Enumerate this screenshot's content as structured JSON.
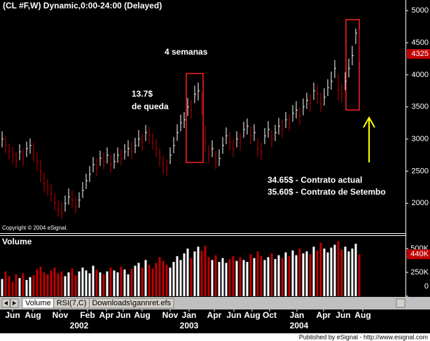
{
  "chart_data": {
    "type": "ohlc",
    "title": "(CL #F,W) Dynamic,0:00-24:00 (Delayed)",
    "up_color": "#ffffff",
    "down_color": "#c00000",
    "close": [
      3000,
      2900,
      2800,
      2750,
      2650,
      2800,
      2700,
      2850,
      2900,
      2800,
      2650,
      2500,
      2300,
      2250,
      2150,
      2000,
      1900,
      1850,
      2000,
      2100,
      2050,
      1950,
      2050,
      2200,
      2350,
      2450,
      2600,
      2550,
      2700,
      2650,
      2750,
      2600,
      2650,
      2750,
      2700,
      2800,
      2850,
      2800,
      2900,
      3000,
      2950,
      3100,
      3050,
      2950,
      2850,
      2700,
      2600,
      2550,
      2750,
      2900,
      3100,
      3250,
      3300,
      3500,
      3450,
      3700,
      3750,
      3550,
      2950,
      2750,
      2850,
      2650,
      2700,
      2900,
      3050,
      2950,
      2850,
      3000,
      2950,
      3150,
      3200,
      3050,
      3100,
      2850,
      2800,
      3050,
      3150,
      3000,
      3100,
      3200,
      3150,
      3300,
      3250,
      3400,
      3450,
      3350,
      3500,
      3600,
      3550,
      3750,
      3700,
      3550,
      3650,
      3800,
      3900,
      4100,
      3750,
      3700,
      3900,
      4100,
      4300,
      4650,
      4325
    ],
    "high": [
      3120,
      3050,
      2930,
      2880,
      2800,
      2920,
      2850,
      2960,
      3010,
      2950,
      2800,
      2680,
      2480,
      2380,
      2300,
      2150,
      2050,
      2020,
      2120,
      2230,
      2200,
      2100,
      2170,
      2330,
      2460,
      2580,
      2720,
      2700,
      2820,
      2790,
      2870,
      2760,
      2780,
      2870,
      2840,
      2920,
      2980,
      2950,
      3020,
      3140,
      3080,
      3220,
      3190,
      3090,
      3000,
      2860,
      2740,
      2680,
      2870,
      3030,
      3230,
      3380,
      3420,
      3640,
      3600,
      3830,
      3880,
      3720,
      3200,
      2900,
      2980,
      2820,
      2840,
      3030,
      3180,
      3100,
      2990,
      3120,
      3090,
      3270,
      3320,
      3200,
      3230,
      3010,
      2950,
      3170,
      3280,
      3140,
      3220,
      3330,
      3300,
      3420,
      3390,
      3530,
      3590,
      3500,
      3630,
      3720,
      3700,
      3880,
      3850,
      3720,
      3790,
      3930,
      4050,
      4230,
      4020,
      3860,
      4040,
      4250,
      4450,
      4720,
      4700
    ],
    "low": [
      2870,
      2780,
      2680,
      2620,
      2540,
      2670,
      2580,
      2720,
      2770,
      2650,
      2500,
      2330,
      2180,
      2120,
      2020,
      1880,
      1790,
      1760,
      1870,
      1980,
      1930,
      1840,
      1930,
      2080,
      2220,
      2330,
      2480,
      2420,
      2580,
      2530,
      2620,
      2480,
      2540,
      2630,
      2590,
      2680,
      2730,
      2680,
      2780,
      2880,
      2820,
      2970,
      2930,
      2830,
      2720,
      2570,
      2460,
      2420,
      2610,
      2780,
      2970,
      3120,
      3170,
      3360,
      3320,
      3560,
      3600,
      3380,
      2800,
      2620,
      2720,
      2530,
      2580,
      2770,
      2920,
      2820,
      2720,
      2870,
      2820,
      3020,
      3070,
      2920,
      2970,
      2720,
      2670,
      2920,
      3020,
      2870,
      2970,
      3070,
      3020,
      3170,
      3120,
      3270,
      3320,
      3220,
      3370,
      3470,
      3420,
      3610,
      3560,
      3420,
      3520,
      3670,
      3770,
      3950,
      3600,
      3570,
      3760,
      3960,
      4150,
      4480,
      4200
    ],
    "volume": [
      180000,
      260000,
      210000,
      150000,
      230000,
      190000,
      240000,
      170000,
      200000,
      220000,
      280000,
      310000,
      250000,
      230000,
      270000,
      300000,
      240000,
      260000,
      210000,
      250000,
      290000,
      220000,
      260000,
      300000,
      270000,
      240000,
      320000,
      280000,
      250000,
      230000,
      260000,
      300000,
      270000,
      250000,
      310000,
      280000,
      230000,
      290000,
      320000,
      350000,
      300000,
      380000,
      330000,
      290000,
      350000,
      410000,
      370000,
      330000,
      300000,
      360000,
      420000,
      380000,
      450000,
      500000,
      400000,
      470000,
      520000,
      480000,
      530000,
      410000,
      380000,
      430000,
      360000,
      400000,
      350000,
      390000,
      420000,
      370000,
      410000,
      380000,
      360000,
      440000,
      400000,
      470000,
      420000,
      380000,
      410000,
      450000,
      390000,
      430000,
      400000,
      460000,
      420000,
      480000,
      430000,
      500000,
      450000,
      470000,
      440000,
      520000,
      480000,
      560000,
      500000,
      460000,
      510000,
      540000,
      580000,
      490000,
      520000,
      470000,
      500000,
      550000,
      440000
    ],
    "volume_label": "440K",
    "ylim": [
      1545,
      5165
    ],
    "yticks": [
      2000,
      2500,
      3000,
      3500,
      4000,
      4500,
      5000
    ],
    "volume_lim": [
      0,
      625000
    ],
    "volume_ticks": [
      0,
      {
        "value": 250000,
        "label": "250K"
      },
      {
        "value": 500000,
        "label": "500K"
      }
    ],
    "xlim": [
      -0.6,
      115
    ],
    "xticks": [
      {
        "value": 3,
        "label": "Jun"
      },
      {
        "value": 8.8,
        "label": "Aug"
      },
      {
        "value": 16.6,
        "label": "Nov"
      },
      {
        "value": 24.4,
        "label": "Feb"
      },
      {
        "value": 29.8,
        "label": "Apr"
      },
      {
        "value": 34.6,
        "label": "Jun"
      },
      {
        "value": 40,
        "label": "Aug"
      },
      {
        "value": 48,
        "label": "Nov"
      },
      {
        "value": 53.4,
        "label": "Jan"
      },
      {
        "value": 60.6,
        "label": "Apr"
      },
      {
        "value": 66.2,
        "label": "Jun"
      },
      {
        "value": 71.4,
        "label": "Aug"
      },
      {
        "value": 76.4,
        "label": "Oct"
      },
      {
        "value": 84.2,
        "label": "Jan"
      },
      {
        "value": 91.8,
        "label": "Apr"
      },
      {
        "value": 97.4,
        "label": "Jun"
      },
      {
        "value": 103,
        "label": "Aug"
      }
    ],
    "year_ticks": [
      {
        "value": 22,
        "label": "2002"
      },
      {
        "value": 53.4,
        "label": "2003"
      },
      {
        "value": 84.8,
        "label": "2004"
      }
    ],
    "annotations": [
      "4 semanas",
      "13.7$",
      "de queda",
      "34.65$ - Contrato actual",
      "35.60$ - Contrato de Setembo"
    ],
    "copyright": "Copyright © 2004 eSignal.",
    "volume_title": "Volume",
    "tabs": [
      "Volume",
      "RSI(7,C)",
      "Downloads\\gannret.efs"
    ],
    "footer": "Published by eSignal - http://www.esignal.com"
  }
}
